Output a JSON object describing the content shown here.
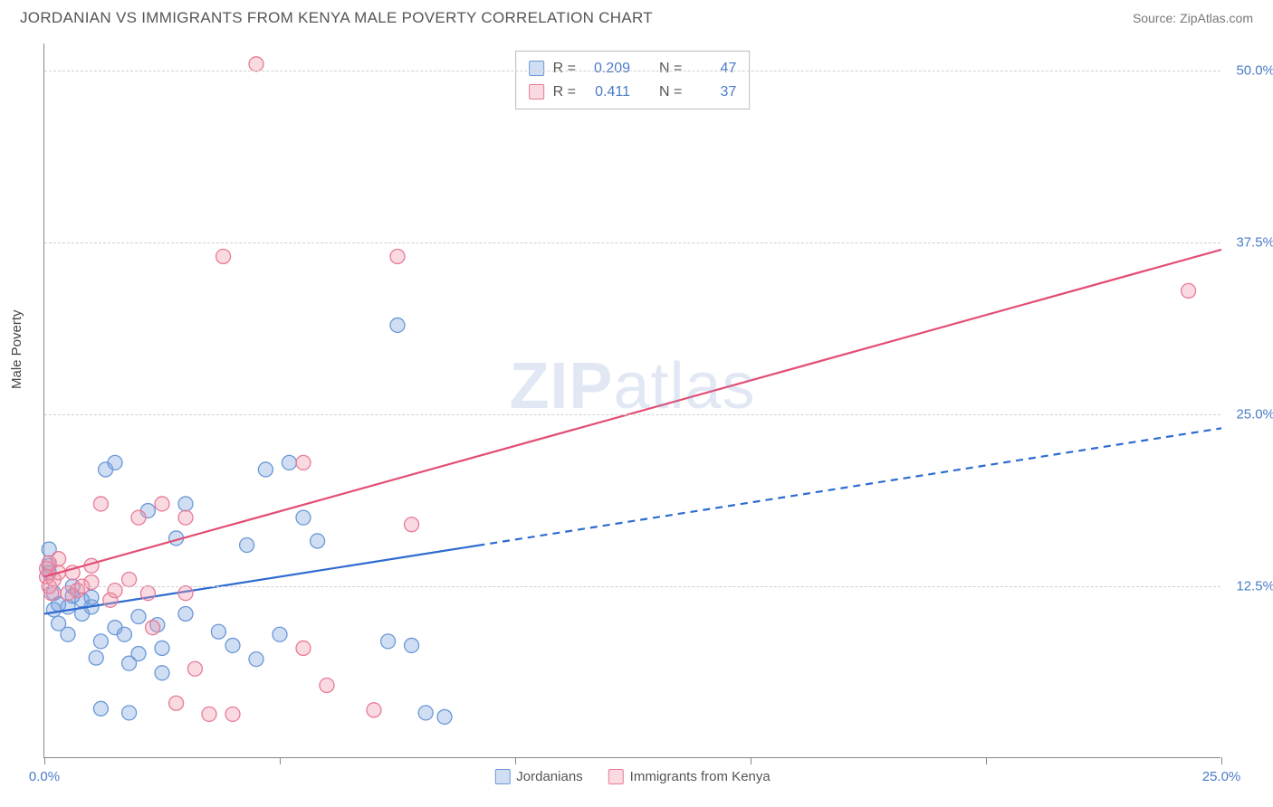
{
  "header": {
    "title": "JORDANIAN VS IMMIGRANTS FROM KENYA MALE POVERTY CORRELATION CHART",
    "source": "Source: ZipAtlas.com"
  },
  "ylabel": "Male Poverty",
  "watermark": {
    "bold": "ZIP",
    "rest": "atlas"
  },
  "chart": {
    "type": "scatter",
    "xlim": [
      0,
      25
    ],
    "ylim": [
      0,
      52
    ],
    "x_ticks": [
      0,
      5,
      10,
      15,
      20,
      25
    ],
    "x_tick_labels_show": [
      0,
      25
    ],
    "x_tick_label_fmt": [
      "0.0%",
      "25.0%"
    ],
    "y_gridlines": [
      12.5,
      25.0,
      37.5,
      50.0
    ],
    "y_tick_labels": [
      "12.5%",
      "25.0%",
      "37.5%",
      "50.0%"
    ],
    "grid_color": "#d0d0d0",
    "axis_color": "#888888",
    "background_color": "#ffffff",
    "series": [
      {
        "name": "Jordanians",
        "color_fill": "rgba(120,160,220,0.35)",
        "color_stroke": "#6a98d8",
        "marker_radius": 8,
        "points": [
          [
            0.1,
            13.5
          ],
          [
            0.1,
            15.2
          ],
          [
            0.1,
            14.0
          ],
          [
            0.2,
            12.0
          ],
          [
            0.2,
            10.8
          ],
          [
            0.3,
            9.8
          ],
          [
            0.3,
            11.2
          ],
          [
            0.5,
            11.0
          ],
          [
            0.5,
            9.0
          ],
          [
            0.6,
            11.8
          ],
          [
            0.6,
            12.5
          ],
          [
            0.8,
            10.5
          ],
          [
            0.8,
            11.5
          ],
          [
            1.0,
            11.0
          ],
          [
            1.0,
            11.7
          ],
          [
            1.1,
            7.3
          ],
          [
            1.2,
            8.5
          ],
          [
            1.2,
            3.6
          ],
          [
            1.3,
            21.0
          ],
          [
            1.5,
            21.5
          ],
          [
            1.5,
            9.5
          ],
          [
            1.7,
            9.0
          ],
          [
            1.8,
            6.9
          ],
          [
            1.8,
            3.3
          ],
          [
            2.0,
            7.6
          ],
          [
            2.0,
            10.3
          ],
          [
            2.2,
            18.0
          ],
          [
            2.4,
            9.7
          ],
          [
            2.5,
            8.0
          ],
          [
            2.5,
            6.2
          ],
          [
            2.8,
            16.0
          ],
          [
            3.0,
            18.5
          ],
          [
            3.0,
            10.5
          ],
          [
            3.7,
            9.2
          ],
          [
            4.0,
            8.2
          ],
          [
            4.3,
            15.5
          ],
          [
            4.5,
            7.2
          ],
          [
            4.7,
            21.0
          ],
          [
            5.0,
            9.0
          ],
          [
            5.2,
            21.5
          ],
          [
            5.5,
            17.5
          ],
          [
            5.8,
            15.8
          ],
          [
            7.3,
            8.5
          ],
          [
            7.5,
            31.5
          ],
          [
            7.8,
            8.2
          ],
          [
            8.1,
            3.3
          ],
          [
            8.5,
            3.0
          ]
        ],
        "trend": {
          "x1": 0,
          "y1": 10.5,
          "x2": 25,
          "y2": 24.0,
          "solid_to_x": 9.2,
          "line_color": "#2e6bd0",
          "line_width": 2.2
        }
      },
      {
        "name": "Immigrants from Kenya",
        "color_fill": "rgba(240,150,170,0.35)",
        "color_stroke": "#e87a98",
        "marker_radius": 8,
        "points": [
          [
            0.05,
            13.2
          ],
          [
            0.05,
            13.8
          ],
          [
            0.1,
            12.5
          ],
          [
            0.1,
            14.2
          ],
          [
            0.15,
            12.0
          ],
          [
            0.2,
            13.0
          ],
          [
            0.3,
            13.5
          ],
          [
            0.3,
            14.5
          ],
          [
            0.5,
            12.0
          ],
          [
            0.6,
            13.5
          ],
          [
            0.7,
            12.2
          ],
          [
            0.8,
            12.5
          ],
          [
            1.0,
            12.8
          ],
          [
            1.0,
            14.0
          ],
          [
            1.2,
            18.5
          ],
          [
            1.4,
            11.5
          ],
          [
            1.5,
            12.2
          ],
          [
            1.8,
            13.0
          ],
          [
            2.0,
            17.5
          ],
          [
            2.2,
            12.0
          ],
          [
            2.3,
            9.5
          ],
          [
            2.5,
            18.5
          ],
          [
            2.8,
            4.0
          ],
          [
            3.0,
            17.5
          ],
          [
            3.0,
            12.0
          ],
          [
            3.2,
            6.5
          ],
          [
            3.5,
            3.2
          ],
          [
            3.8,
            36.5
          ],
          [
            4.0,
            3.2
          ],
          [
            4.5,
            50.5
          ],
          [
            5.5,
            8.0
          ],
          [
            5.5,
            21.5
          ],
          [
            6.0,
            5.3
          ],
          [
            7.0,
            3.5
          ],
          [
            7.5,
            36.5
          ],
          [
            7.8,
            17.0
          ],
          [
            24.3,
            34.0
          ]
        ],
        "trend": {
          "x1": 0,
          "y1": 13.2,
          "x2": 25,
          "y2": 37.0,
          "solid_to_x": 25,
          "line_color": "#e34d74",
          "line_width": 2.2
        }
      }
    ]
  },
  "corr_legend": {
    "rows": [
      {
        "swatch_fill": "rgba(120,160,220,0.35)",
        "swatch_stroke": "#6a98d8",
        "r": "0.209",
        "n": "47"
      },
      {
        "swatch_fill": "rgba(240,150,170,0.35)",
        "swatch_stroke": "#e87a98",
        "r": "0.411",
        "n": "37"
      }
    ],
    "labels": {
      "r": "R =",
      "n": "N ="
    }
  },
  "x_legend": {
    "items": [
      {
        "label": "Jordanians",
        "swatch_fill": "rgba(120,160,220,0.35)",
        "swatch_stroke": "#6a98d8"
      },
      {
        "label": "Immigrants from Kenya",
        "swatch_fill": "rgba(240,150,170,0.35)",
        "swatch_stroke": "#e87a98"
      }
    ]
  }
}
